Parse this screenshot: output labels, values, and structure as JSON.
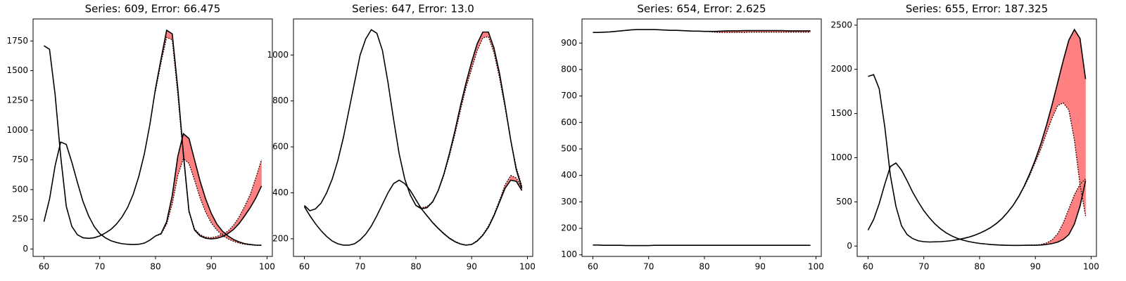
{
  "chart_data": [
    {
      "type": "line",
      "title": "Series: 609, Error: 66.475",
      "x": [
        60,
        61,
        62,
        63,
        64,
        65,
        66,
        67,
        68,
        69,
        70,
        71,
        72,
        73,
        74,
        75,
        76,
        77,
        78,
        79,
        80,
        81,
        82,
        83,
        84,
        85,
        86,
        87,
        88,
        89,
        90,
        91,
        92,
        93,
        94,
        95,
        96,
        97,
        98,
        99
      ],
      "xlim": [
        58.05,
        100.95
      ],
      "xticks": [
        60,
        70,
        80,
        90,
        100
      ],
      "ylim": [
        -62,
        1935
      ],
      "yticks": [
        0,
        250,
        500,
        750,
        1000,
        1250,
        1500,
        1750
      ],
      "fill_color": "#ff8080",
      "series": [
        {
          "color": "#000000",
          "values": [
            1710,
            1680,
            1300,
            780,
            360,
            190,
            120,
            95,
            90,
            95,
            110,
            135,
            165,
            210,
            270,
            350,
            460,
            610,
            800,
            1050,
            1350,
            1600,
            1840,
            1810,
            1350,
            800,
            320,
            160,
            110,
            90,
            85,
            90,
            105,
            130,
            165,
            215,
            280,
            350,
            430,
            530
          ],
          "forecast": [
            null,
            null,
            null,
            null,
            null,
            null,
            null,
            null,
            null,
            null,
            null,
            null,
            null,
            null,
            null,
            null,
            null,
            null,
            null,
            null,
            1330,
            1570,
            1780,
            1760,
            1300,
            780,
            310,
            170,
            120,
            100,
            95,
            105,
            125,
            150,
            200,
            270,
            360,
            460,
            600,
            750
          ]
        },
        {
          "color": "#000000",
          "values": [
            230,
            420,
            700,
            900,
            880,
            730,
            560,
            400,
            280,
            190,
            130,
            95,
            70,
            55,
            45,
            40,
            38,
            40,
            50,
            75,
            110,
            130,
            230,
            450,
            780,
            970,
            930,
            750,
            570,
            420,
            300,
            210,
            150,
            110,
            80,
            60,
            45,
            38,
            33,
            32
          ],
          "forecast": [
            null,
            null,
            null,
            null,
            null,
            null,
            null,
            null,
            null,
            null,
            null,
            null,
            null,
            null,
            null,
            null,
            null,
            null,
            null,
            null,
            110,
            125,
            210,
            380,
            620,
            760,
            720,
            580,
            430,
            310,
            220,
            160,
            115,
            85,
            65,
            50,
            40,
            35,
            32,
            31
          ]
        }
      ]
    },
    {
      "type": "line",
      "title": "Series: 647, Error: 13.0",
      "x": [
        60,
        61,
        62,
        63,
        64,
        65,
        66,
        67,
        68,
        69,
        70,
        71,
        72,
        73,
        74,
        75,
        76,
        77,
        78,
        79,
        80,
        81,
        82,
        83,
        84,
        85,
        86,
        87,
        88,
        89,
        90,
        91,
        92,
        93,
        94,
        95,
        96,
        97,
        98,
        99
      ],
      "xlim": [
        58.05,
        100.95
      ],
      "xticks": [
        60,
        70,
        80,
        90,
        100
      ],
      "ylim": [
        123,
        1157
      ],
      "yticks": [
        200,
        400,
        600,
        800,
        1000
      ],
      "fill_color": "#ff8080",
      "series": [
        {
          "color": "#000000",
          "values": [
            345,
            322,
            330,
            355,
            400,
            460,
            540,
            640,
            760,
            880,
            1000,
            1070,
            1110,
            1095,
            1020,
            880,
            720,
            570,
            460,
            390,
            345,
            330,
            335,
            360,
            410,
            480,
            570,
            670,
            780,
            880,
            970,
            1050,
            1100,
            1100,
            1030,
            920,
            780,
            630,
            500,
            420
          ],
          "forecast": [
            null,
            null,
            null,
            null,
            null,
            null,
            null,
            null,
            null,
            null,
            null,
            null,
            null,
            null,
            null,
            null,
            null,
            null,
            null,
            null,
            345,
            335,
            340,
            362,
            408,
            475,
            560,
            655,
            760,
            860,
            940,
            1020,
            1075,
            1080,
            1010,
            900,
            770,
            630,
            510,
            430
          ]
        },
        {
          "color": "#000000",
          "values": [
            340,
            300,
            265,
            235,
            210,
            190,
            178,
            172,
            172,
            178,
            195,
            220,
            255,
            300,
            350,
            400,
            440,
            455,
            440,
            410,
            370,
            330,
            300,
            270,
            245,
            222,
            202,
            187,
            177,
            172,
            175,
            190,
            215,
            250,
            300,
            360,
            420,
            455,
            450,
            410
          ],
          "forecast": [
            null,
            null,
            null,
            null,
            null,
            null,
            null,
            null,
            null,
            null,
            null,
            null,
            null,
            null,
            null,
            null,
            null,
            null,
            null,
            null,
            368,
            330,
            300,
            272,
            246,
            224,
            204,
            189,
            178,
            173,
            176,
            192,
            218,
            255,
            305,
            368,
            435,
            475,
            465,
            420
          ]
        }
      ]
    },
    {
      "type": "line",
      "title": "Series: 654, Error: 2.625",
      "x": [
        60,
        61,
        62,
        63,
        64,
        65,
        66,
        67,
        68,
        69,
        70,
        71,
        72,
        73,
        74,
        75,
        76,
        77,
        78,
        79,
        80,
        81,
        82,
        83,
        84,
        85,
        86,
        87,
        88,
        89,
        90,
        91,
        92,
        93,
        94,
        95,
        96,
        97,
        98,
        99
      ],
      "xlim": [
        58.05,
        100.95
      ],
      "xticks": [
        60,
        70,
        80,
        90,
        100
      ],
      "ylim": [
        94,
        991
      ],
      "yticks": [
        100,
        200,
        300,
        400,
        500,
        600,
        700,
        800,
        900
      ],
      "fill_color": "#ff8080",
      "series": [
        {
          "color": "#000000",
          "values": [
            940,
            940,
            941,
            942,
            944,
            946,
            948,
            950,
            951,
            951,
            951,
            951,
            950,
            949,
            948,
            948,
            947,
            946,
            945,
            945,
            944,
            944,
            944,
            945,
            946,
            946,
            946,
            947,
            947,
            947,
            947,
            947,
            947,
            947,
            947,
            946,
            946,
            946,
            946,
            946
          ],
          "forecast": [
            null,
            null,
            null,
            null,
            null,
            null,
            null,
            null,
            null,
            null,
            null,
            null,
            null,
            null,
            null,
            null,
            null,
            null,
            null,
            null,
            944,
            943,
            941,
            940,
            940,
            940,
            940,
            940,
            941,
            941,
            941,
            941,
            941,
            941,
            941,
            941,
            941,
            941,
            941,
            941
          ]
        },
        {
          "color": "#000000",
          "values": [
            137,
            137,
            136,
            136,
            136,
            136,
            135,
            135,
            135,
            135,
            135,
            136,
            136,
            136,
            136,
            136,
            136,
            136,
            136,
            136,
            136,
            136,
            136,
            136,
            136,
            136,
            136,
            136,
            136,
            136,
            136,
            136,
            136,
            136,
            136,
            136,
            136,
            136,
            136,
            136
          ],
          "forecast": [
            null,
            null,
            null,
            null,
            null,
            null,
            null,
            null,
            null,
            null,
            null,
            null,
            null,
            null,
            null,
            null,
            null,
            null,
            null,
            null,
            136,
            136,
            136,
            136,
            136,
            136,
            136,
            136,
            136,
            136,
            136,
            136,
            136,
            136,
            136,
            136,
            136,
            136,
            136,
            136
          ]
        }
      ]
    },
    {
      "type": "line",
      "title": "Series: 655, Error: 187.325",
      "x": [
        60,
        61,
        62,
        63,
        64,
        65,
        66,
        67,
        68,
        69,
        70,
        71,
        72,
        73,
        74,
        75,
        76,
        77,
        78,
        79,
        80,
        81,
        82,
        83,
        84,
        85,
        86,
        87,
        88,
        89,
        90,
        91,
        92,
        93,
        94,
        95,
        96,
        97,
        98,
        99
      ],
      "xlim": [
        58.05,
        100.95
      ],
      "xticks": [
        60,
        70,
        80,
        90,
        100
      ],
      "ylim": [
        -117,
        2570
      ],
      "yticks": [
        0,
        500,
        1000,
        1500,
        2000,
        2500
      ],
      "fill_color": "#ff8080",
      "series": [
        {
          "color": "#000000",
          "values": [
            1920,
            1940,
            1780,
            1350,
            800,
            450,
            230,
            130,
            85,
            60,
            50,
            46,
            48,
            50,
            55,
            62,
            72,
            85,
            100,
            120,
            145,
            175,
            210,
            255,
            310,
            380,
            460,
            560,
            680,
            820,
            980,
            1160,
            1370,
            1600,
            1850,
            2100,
            2330,
            2450,
            2350,
            1890
          ],
          "forecast": [
            null,
            null,
            null,
            null,
            null,
            null,
            null,
            null,
            null,
            null,
            null,
            null,
            null,
            null,
            null,
            null,
            null,
            null,
            null,
            null,
            145,
            175,
            210,
            255,
            310,
            380,
            460,
            555,
            670,
            800,
            950,
            1100,
            1280,
            1450,
            1590,
            1620,
            1540,
            1200,
            700,
            340
          ]
        },
        {
          "color": "#000000",
          "values": [
            180,
            300,
            480,
            700,
            900,
            940,
            860,
            740,
            610,
            500,
            400,
            320,
            250,
            195,
            150,
            115,
            88,
            68,
            52,
            40,
            30,
            24,
            18,
            14,
            11,
            9,
            8,
            8,
            9,
            10,
            10,
            12,
            18,
            28,
            45,
            75,
            130,
            250,
            450,
            740
          ],
          "forecast": [
            null,
            null,
            null,
            null,
            null,
            null,
            null,
            null,
            null,
            null,
            null,
            null,
            null,
            null,
            null,
            null,
            null,
            null,
            null,
            null,
            30,
            24,
            18,
            14,
            11,
            9,
            8,
            8,
            9,
            11,
            12,
            18,
            35,
            70,
            140,
            260,
            420,
            580,
            700,
            760
          ]
        }
      ]
    }
  ]
}
